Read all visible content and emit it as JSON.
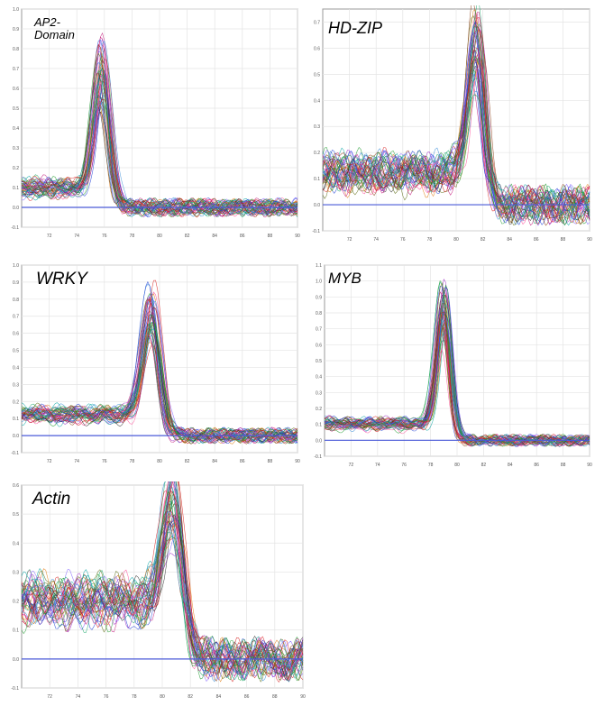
{
  "figure": {
    "colors": {
      "baseline": "#4a5ad8",
      "grid": "#e4e4e4",
      "frame": "#9a9a9a",
      "curve_palette": [
        "#1f3fd6",
        "#d6201f",
        "#1e9a2e",
        "#9b2bc4",
        "#e07b12",
        "#0aa6a6",
        "#c2187a",
        "#5b6b10",
        "#2b2b2b",
        "#7f5fff",
        "#ff4f9a",
        "#3c8fd8",
        "#8a3b12",
        "#1aa86b"
      ]
    }
  },
  "chart_data": [
    {
      "type": "line",
      "label": "AP2-\nDomain",
      "title": "",
      "xlabel": "",
      "ylabel": "",
      "xlim": [
        70,
        90
      ],
      "ylim": [
        -0.1,
        1.0
      ],
      "x_ticks": [
        72,
        74,
        76,
        78,
        80,
        82,
        84,
        86,
        88,
        90
      ],
      "y_ticks": [
        -0.1,
        0.0,
        0.1,
        0.2,
        0.3,
        0.4,
        0.5,
        0.6,
        0.7,
        0.8,
        0.9,
        1.0
      ],
      "baseline": 0.0,
      "n_curves": 45,
      "peak_x": 75.8,
      "peak_y": 0.78,
      "peak_width": 0.55,
      "plateau_y": 0.1,
      "noise": 0.025
    },
    {
      "type": "line",
      "label": "HD-ZIP",
      "title": "",
      "xlabel": "",
      "ylabel": "",
      "xlim": [
        70,
        90
      ],
      "ylim": [
        -0.1,
        0.75
      ],
      "x_ticks": [
        72,
        74,
        76,
        78,
        80,
        82,
        84,
        86,
        88,
        90
      ],
      "y_ticks": [
        -0.1,
        0.0,
        0.1,
        0.2,
        0.3,
        0.4,
        0.5,
        0.6,
        0.7
      ],
      "baseline": 0.0,
      "n_curves": 45,
      "peak_x": 81.5,
      "peak_y": 0.66,
      "peak_width": 0.6,
      "plateau_y": 0.12,
      "noise": 0.04
    },
    {
      "type": "line",
      "label": "WRKY",
      "title": "",
      "xlabel": "",
      "ylabel": "",
      "xlim": [
        70,
        90
      ],
      "ylim": [
        -0.1,
        1.0
      ],
      "x_ticks": [
        72,
        74,
        76,
        78,
        80,
        82,
        84,
        86,
        88,
        90
      ],
      "y_ticks": [
        -0.1,
        0.0,
        0.1,
        0.2,
        0.3,
        0.4,
        0.5,
        0.6,
        0.7,
        0.8,
        0.9,
        1.0
      ],
      "baseline": 0.0,
      "n_curves": 45,
      "peak_x": 79.4,
      "peak_y": 0.82,
      "peak_width": 0.6,
      "plateau_y": 0.12,
      "noise": 0.025
    },
    {
      "type": "line",
      "label": "MYB",
      "title": "",
      "xlabel": "",
      "ylabel": "",
      "xlim": [
        70,
        90
      ],
      "ylim": [
        -0.1,
        1.1
      ],
      "x_ticks": [
        72,
        74,
        76,
        78,
        80,
        82,
        84,
        86,
        88,
        90
      ],
      "y_ticks": [
        -0.1,
        0.0,
        0.1,
        0.2,
        0.3,
        0.4,
        0.5,
        0.6,
        0.7,
        0.8,
        0.9,
        1.0,
        1.1
      ],
      "baseline": 0.0,
      "n_curves": 45,
      "peak_x": 79.0,
      "peak_y": 0.95,
      "peak_width": 0.5,
      "plateau_y": 0.1,
      "noise": 0.02
    },
    {
      "type": "line",
      "label": "Actin",
      "title": "",
      "xlabel": "",
      "ylabel": "",
      "xlim": [
        70,
        90
      ],
      "ylim": [
        -0.1,
        0.6
      ],
      "x_ticks": [
        72,
        74,
        76,
        78,
        80,
        82,
        84,
        86,
        88,
        90
      ],
      "y_ticks": [
        -0.1,
        0.0,
        0.1,
        0.2,
        0.3,
        0.4,
        0.5,
        0.6
      ],
      "baseline": 0.0,
      "n_curves": 45,
      "peak_x": 80.8,
      "peak_y": 0.5,
      "peak_width": 0.7,
      "plateau_y": 0.2,
      "noise": 0.04
    }
  ]
}
